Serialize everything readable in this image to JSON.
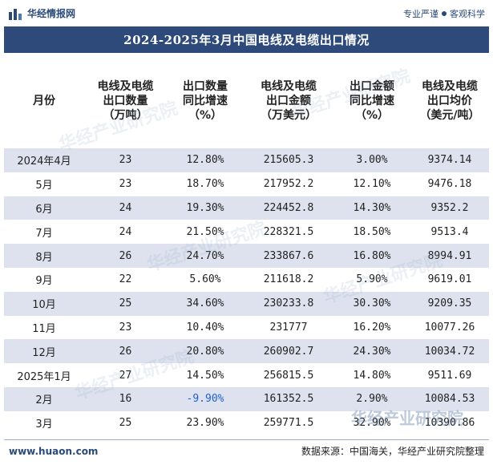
{
  "header": {
    "brand_name": "华经情报网",
    "slogan_left": "专业严谨",
    "slogan_right": "客观科学",
    "logo_icon": "chart-bars-logo-icon"
  },
  "title": "2024-2025年3月中国电线及电缆出口情况",
  "table": {
    "columns": [
      "月份",
      "电线及电缆\n出口数量\n（万吨）",
      "出口数量\n同比增速\n（%）",
      "电线及电缆\n出口金额\n（万美元）",
      "出口金额\n同比增速\n（%）",
      "电线及电缆\n出口均价\n（美元/吨）"
    ],
    "rows": [
      [
        "2024年4月",
        "23",
        "12.80%",
        "215605.3",
        "3.00%",
        "9374.14"
      ],
      [
        "5月",
        "23",
        "18.70%",
        "217952.2",
        "12.10%",
        "9476.18"
      ],
      [
        "6月",
        "24",
        "19.30%",
        "224452.8",
        "14.30%",
        "9352.2"
      ],
      [
        "7月",
        "24",
        "21.50%",
        "228321.5",
        "18.50%",
        "9513.4"
      ],
      [
        "8月",
        "26",
        "24.70%",
        "233867.6",
        "16.80%",
        "8994.91"
      ],
      [
        "9月",
        "22",
        "5.60%",
        "211618.2",
        "5.90%",
        "9619.01"
      ],
      [
        "10月",
        "25",
        "34.60%",
        "230233.8",
        "30.30%",
        "9209.35"
      ],
      [
        "11月",
        "23",
        "10.40%",
        "231777",
        "16.20%",
        "10077.26"
      ],
      [
        "12月",
        "26",
        "20.80%",
        "260902.7",
        "24.30%",
        "10034.72"
      ],
      [
        "2025年1月",
        "27",
        "14.50%",
        "256815.5",
        "14.80%",
        "9511.69"
      ],
      [
        "2月",
        "16",
        "-9.90%",
        "161352.5",
        "2.90%",
        "10084.53"
      ],
      [
        "3月",
        "25",
        "23.90%",
        "259771.5",
        "32.90%",
        "10390.86"
      ]
    ]
  },
  "footer": {
    "site": "www.huaon.com",
    "source": "数据来源：中国海关，华经产业研究院整理"
  },
  "watermark": "华经产业研究院",
  "colors": {
    "title_bg": "#2d4a7a",
    "stripe": "#dde2ee",
    "negative": "#1f5fd6",
    "brand": "#2a4a7a"
  }
}
